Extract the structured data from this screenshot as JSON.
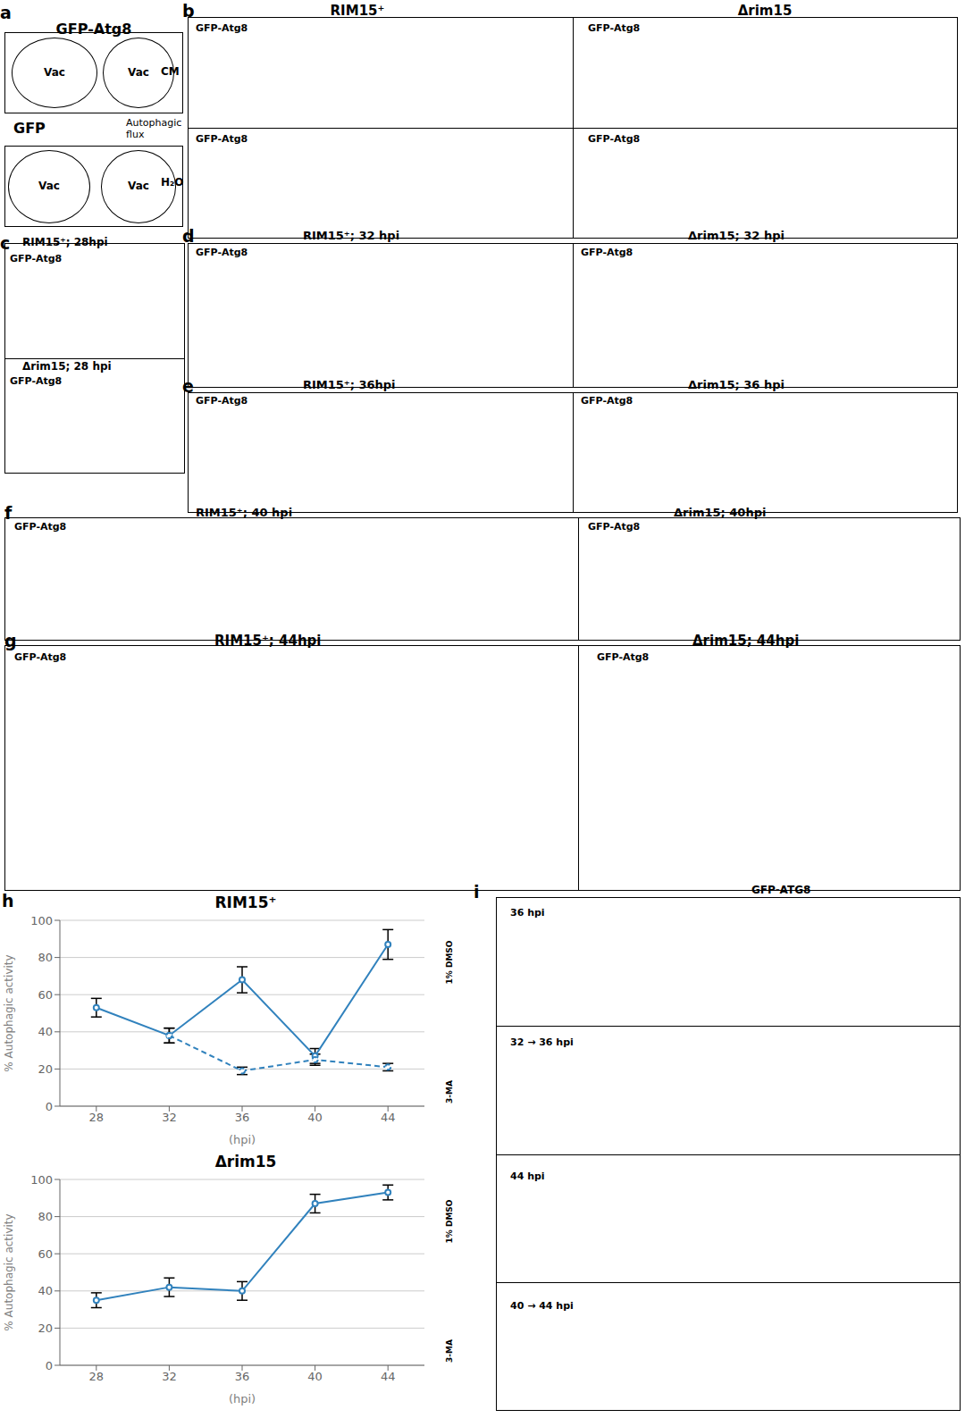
{
  "chart_data": [
    {
      "type": "line",
      "title": "RIM15⁺",
      "xlabel": "(hpi)",
      "ylabel": "% Autophagic activity",
      "x": [
        28,
        32,
        36,
        40,
        44
      ],
      "xlim": [
        26,
        46
      ],
      "xticks": [
        28,
        32,
        36,
        40,
        44
      ],
      "ylim": [
        0,
        100
      ],
      "yticks": [
        0,
        20,
        40,
        60,
        80,
        100
      ],
      "grid": "y",
      "series": [
        {
          "values": [
            53,
            38,
            68,
            27,
            87
          ],
          "errors": [
            5,
            4,
            7,
            4,
            8
          ],
          "line_style": "solid",
          "marker": "circle"
        },
        {
          "values": [
            null,
            38,
            19,
            25,
            21
          ],
          "errors": [
            null,
            4,
            2,
            3,
            2
          ],
          "line_style": "dashed",
          "marker": "circle"
        }
      ],
      "annotations": [
        "Vac",
        "Vac",
        "GFP-Atg8",
        "Autophagic\nflux",
        "Vac",
        "Vac",
        "GFP",
        "a",
        "b",
        "RIM15⁺",
        "Δrim15",
        "GFP-Atg8",
        "GFP-Atg8",
        "GFP-Atg8",
        "GFP-Atg8",
        "CM",
        "H₂O",
        "c",
        "RIM15⁺; 28hpi",
        "GFP-Atg8",
        "Δrim15; 28 hpi",
        "GFP-Atg8",
        "d",
        "RIM15⁺; 32 hpi",
        "Δrim15; 32 hpi",
        "GFP-Atg8",
        "GFP-Atg8",
        "e",
        "RIM15⁺; 36hpi",
        "Δrim15; 36 hpi",
        "GFP-Atg8",
        "GFP-Atg8",
        "f",
        "RIM15⁺; 40 hpi",
        "Δrim15; 40hpi",
        "GFP-Atg8",
        "GFP-Atg8",
        "g",
        "RIM15⁺; 44hpi",
        "Δrim15; 44hpi",
        "GFP-Atg8",
        "GFP-Atg8",
        "h",
        "i",
        "GFP-ATG8",
        "36 hpi",
        "32 → 36 hpi",
        "44 hpi",
        "40 → 44 hpi",
        "1% DMSO",
        "3-MA",
        "1% DMSO",
        "3-MA"
      ]
    },
    {
      "type": "line",
      "title": "Δrim15",
      "xlabel": "(hpi)",
      "ylabel": "% Autophagic activity",
      "x": [
        28,
        32,
        36,
        40,
        44
      ],
      "xlim": [
        26,
        46
      ],
      "xticks": [
        28,
        32,
        36,
        40,
        44
      ],
      "ylim": [
        0,
        100
      ],
      "yticks": [
        0,
        20,
        40,
        60,
        80,
        100
      ],
      "grid": "y",
      "series": [
        {
          "values": [
            35,
            42,
            40,
            87,
            93
          ],
          "errors": [
            4,
            5,
            5,
            5,
            4
          ],
          "line_style": "solid",
          "marker": "circle"
        }
      ]
    }
  ]
}
